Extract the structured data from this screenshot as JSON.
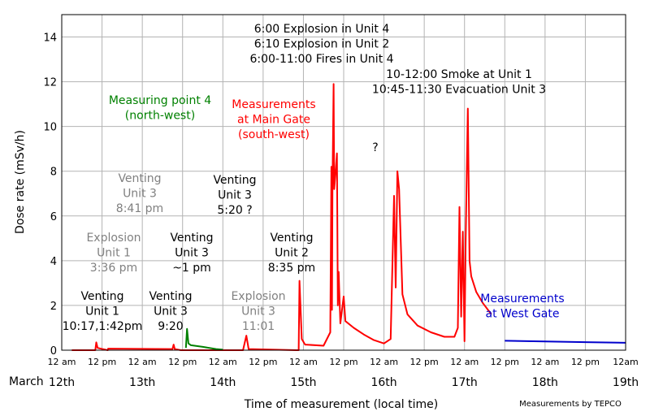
{
  "chart_data": {
    "type": "line",
    "xlabel": "Time of measurement (local time)",
    "ylabel": "Dose rate (mSv/h)",
    "credit": "Measurements by TEPCO",
    "xlim": [
      "2011-03-12 00:00",
      "2011-03-19 00:00"
    ],
    "ylim": [
      0,
      15
    ],
    "grid": true,
    "y_ticks": [
      "0",
      "2",
      "4",
      "6",
      "8",
      "10",
      "12",
      "14"
    ],
    "x_ticks": [
      "12 am",
      "12 pm",
      "12 am",
      "12 pm",
      "12 am",
      "12 pm",
      "12 am",
      "12 pm",
      "12 am",
      "12 pm",
      "12 am",
      "12 pm",
      "12 am",
      "12 pm",
      "12am"
    ],
    "month_label": "March",
    "day_labels": [
      "12th",
      "13th",
      "14th",
      "15th",
      "16th",
      "17th",
      "18th",
      "19th"
    ],
    "colors": {
      "main_gate": "#ff0000",
      "point4": "#008000",
      "west_gate": "#0000cc",
      "grid": "#b3b3b3",
      "grey_text": "#808080"
    },
    "series": [
      {
        "name": "Measurements at Main Gate (south-west)",
        "color": "#ff0000",
        "points": [
          [
            "03-12 03:00",
            0
          ],
          [
            "03-12 10:00",
            0
          ],
          [
            "03-12 10:17",
            0.35
          ],
          [
            "03-12 10:40",
            0.1
          ],
          [
            "03-12 13:42",
            0
          ],
          [
            "03-12 13:50",
            0.07
          ],
          [
            "03-13 09:00",
            0.05
          ],
          [
            "03-13 09:20",
            0.25
          ],
          [
            "03-13 09:40",
            0.05
          ],
          [
            "03-13 11:30",
            0
          ],
          [
            "03-14 06:00",
            0
          ],
          [
            "03-14 07:00",
            0.65
          ],
          [
            "03-14 07:40",
            0.05
          ],
          [
            "03-14 22:00",
            0
          ],
          [
            "03-14 22:35",
            0
          ],
          [
            "03-14 22:50",
            3.1
          ],
          [
            "03-14 23:30",
            0.5
          ],
          [
            "03-15 00:30",
            0.25
          ],
          [
            "03-15 06:00",
            0.2
          ],
          [
            "03-15 08:00",
            0.8
          ],
          [
            "03-15 08:20",
            8.2
          ],
          [
            "03-15 08:31",
            1.8
          ],
          [
            "03-15 08:40",
            7.3
          ],
          [
            "03-15 09:00",
            11.9
          ],
          [
            "03-15 09:10",
            7.2
          ],
          [
            "03-15 09:30",
            7.8
          ],
          [
            "03-15 10:00",
            8.8
          ],
          [
            "03-15 10:15",
            2.0
          ],
          [
            "03-15 10:30",
            3.5
          ],
          [
            "03-15 11:00",
            1.2
          ],
          [
            "03-15 12:00",
            2.4
          ],
          [
            "03-15 12:30",
            1.3
          ],
          [
            "03-15 15:00",
            1.0
          ],
          [
            "03-15 18:00",
            0.7
          ],
          [
            "03-15 21:00",
            0.45
          ],
          [
            "03-16 00:00",
            0.3
          ],
          [
            "03-16 02:00",
            0.5
          ],
          [
            "03-16 03:00",
            6.9
          ],
          [
            "03-16 03:30",
            2.8
          ],
          [
            "03-16 04:00",
            8.0
          ],
          [
            "03-16 04:30",
            7.2
          ],
          [
            "03-16 05:30",
            2.5
          ],
          [
            "03-16 07:00",
            1.6
          ],
          [
            "03-16 10:00",
            1.1
          ],
          [
            "03-16 14:00",
            0.8
          ],
          [
            "03-16 18:00",
            0.6
          ],
          [
            "03-16 21:00",
            0.6
          ],
          [
            "03-16 22:00",
            1.0
          ],
          [
            "03-16 22:30",
            6.4
          ],
          [
            "03-16 23:00",
            1.5
          ],
          [
            "03-16 23:30",
            5.3
          ],
          [
            "03-17 00:00",
            0.4
          ],
          [
            "03-17 00:20",
            4.8
          ],
          [
            "03-17 01:00",
            10.8
          ],
          [
            "03-17 01:30",
            4.0
          ],
          [
            "03-17 02:00",
            3.3
          ],
          [
            "03-17 03:30",
            2.6
          ],
          [
            "03-17 05:30",
            2.1
          ],
          [
            "03-17 08:00",
            1.6
          ]
        ]
      },
      {
        "name": "Measuring point 4 (north-west)",
        "color": "#008000",
        "points": [
          [
            "03-13 13:00",
            0.1
          ],
          [
            "03-13 13:20",
            0.95
          ],
          [
            "03-13 13:45",
            0.3
          ],
          [
            "03-13 14:30",
            0.22
          ],
          [
            "03-13 18:00",
            0.15
          ],
          [
            "03-13 22:00",
            0.05
          ],
          [
            "03-14 00:00",
            0.02
          ]
        ]
      },
      {
        "name": "Measurements at West Gate",
        "color": "#0000cc",
        "points": [
          [
            "03-17 12:00",
            0.42
          ],
          [
            "03-18 00:00",
            0.39
          ],
          [
            "03-18 12:00",
            0.36
          ],
          [
            "03-19 00:00",
            0.33
          ]
        ]
      }
    ],
    "annotations": [
      {
        "lines": [
          "Venting",
          "Unit 1",
          "10:17,1:42pm"
        ],
        "color": "#000000"
      },
      {
        "lines": [
          "Explosion",
          "Unit 1",
          "3:36 pm"
        ],
        "color": "#808080"
      },
      {
        "lines": [
          "Venting",
          "Unit 3",
          "8:41 pm"
        ],
        "color": "#808080"
      },
      {
        "lines": [
          "Venting",
          "Unit 3",
          "9:20"
        ],
        "color": "#000000"
      },
      {
        "lines": [
          "Venting",
          "Unit 3",
          "~1 pm"
        ],
        "color": "#000000"
      },
      {
        "lines": [
          "Venting",
          "Unit 3",
          "5:20 ?"
        ],
        "color": "#000000"
      },
      {
        "lines": [
          "Explosion",
          "Unit 3",
          "11:01"
        ],
        "color": "#808080"
      },
      {
        "lines": [
          "Venting",
          "Unit 2",
          "8:35 pm"
        ],
        "color": "#000000"
      },
      {
        "lines": [
          "Measuring point 4",
          "(north-west)"
        ],
        "color": "#008000"
      },
      {
        "lines": [
          "Measurements",
          "at Main Gate",
          "(south-west)"
        ],
        "color": "#ff0000"
      },
      {
        "lines": [
          "6:00 Explosion in Unit 4",
          "6:10 Explosion in Unit 2",
          "6:00-11:00 Fires in Unit 4"
        ],
        "color": "#000000"
      },
      {
        "lines": [
          "10-12:00 Smoke at Unit 1",
          "10:45-11:30 Evacuation Unit 3"
        ],
        "color": "#000000"
      },
      {
        "lines": [
          "?"
        ],
        "color": "#000000"
      },
      {
        "lines": [
          "Measurements",
          "at West Gate"
        ],
        "color": "#0000cc"
      }
    ]
  }
}
